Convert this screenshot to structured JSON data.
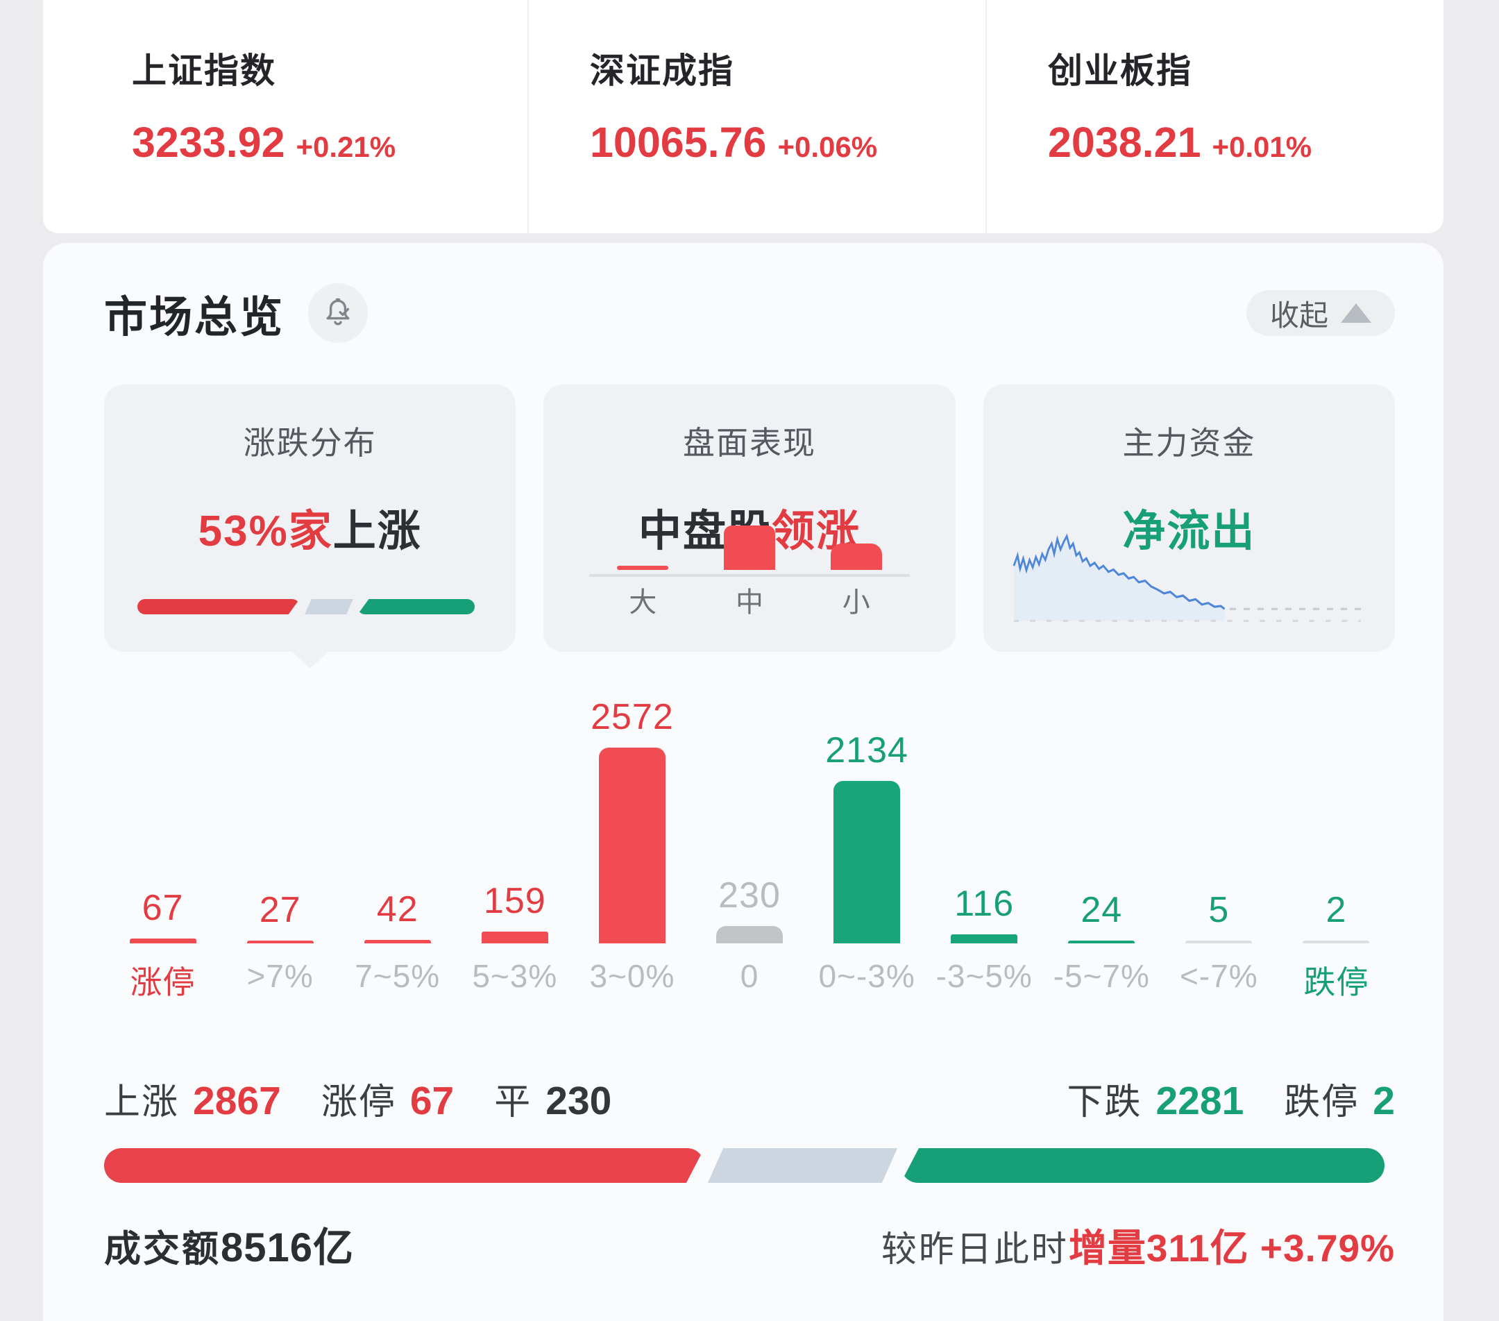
{
  "market_indices": [
    {
      "name": "上证指数",
      "value": "3233.92",
      "change": "+0.21%"
    },
    {
      "name": "深证成指",
      "value": "10065.76",
      "change": "+0.06%"
    },
    {
      "name": "创业板指",
      "value": "2038.21",
      "change": "+0.01%"
    }
  ],
  "overview": {
    "title": "市场总览",
    "collapse_label": "收起",
    "cards": {
      "distribution": {
        "title": "涨跌分布",
        "highlight": "53%家",
        "suffix": "上涨",
        "segments_pct": {
          "up": 47,
          "flat": 12,
          "down": 34
        }
      },
      "performance": {
        "title": "盘面表现",
        "prefix": "中盘股",
        "highlight": "领涨"
      },
      "main_funds": {
        "title": "主力资金",
        "status": "净流出"
      }
    }
  },
  "chart_data": [
    {
      "type": "bar",
      "title": "涨跌分布",
      "categories": [
        "涨停",
        ">7%",
        "7~5%",
        "5~3%",
        "3~0%",
        "0",
        "0~-3%",
        "-3~5%",
        "-5~7%",
        "<-7%",
        "跌停"
      ],
      "values": [
        67,
        27,
        42,
        159,
        2572,
        230,
        2134,
        116,
        24,
        5,
        2
      ],
      "bar_colors": [
        "red",
        "red",
        "red",
        "red",
        "red",
        "gray",
        "green",
        "green",
        "green",
        "muted",
        "muted"
      ],
      "value_colors": [
        "red",
        "red",
        "red",
        "red",
        "red",
        "gray",
        "green",
        "green",
        "green",
        "green",
        "green"
      ],
      "category_colors": [
        "red",
        "gray",
        "gray",
        "gray",
        "gray",
        "gray",
        "gray",
        "gray",
        "gray",
        "gray",
        "green"
      ],
      "ylim": [
        0,
        2572
      ],
      "grid": false,
      "legend": "none"
    },
    {
      "type": "bar",
      "title": "盘面表现",
      "categories": [
        "大",
        "中",
        "小"
      ],
      "relative_heights": [
        0.08,
        1.0,
        0.6
      ],
      "note": "no numeric labels shown; mid-cap bar tallest (中盘股领涨)"
    },
    {
      "type": "line",
      "title": "主力资金",
      "note": "unlabeled sparkline; net outflow line declining from left peak, ends about 60% across with dashed baseline continuation"
    }
  ],
  "summary": {
    "up_label": "上涨",
    "up_value": "2867",
    "limit_up_label": "涨停",
    "limit_up_value": "67",
    "flat_label": "平",
    "flat_value": "230",
    "down_label": "下跌",
    "down_value": "2281",
    "limit_down_label": "跌停",
    "limit_down_value": "2",
    "progress_pct": {
      "up": 46.5,
      "flat": 13.5,
      "down": 37.5
    }
  },
  "footer": {
    "turnover_label": "成交额",
    "turnover_value": "8516亿",
    "compare_label": "较昨日此时",
    "delta_value": "增量311亿 +3.79%"
  },
  "colors": {
    "up_red": "#e23c42",
    "bar_red": "#f14c51",
    "down_green": "#17a077",
    "flat_gray": "#c3c4c8",
    "neutral_blue_gray": "#ccd5e0"
  }
}
